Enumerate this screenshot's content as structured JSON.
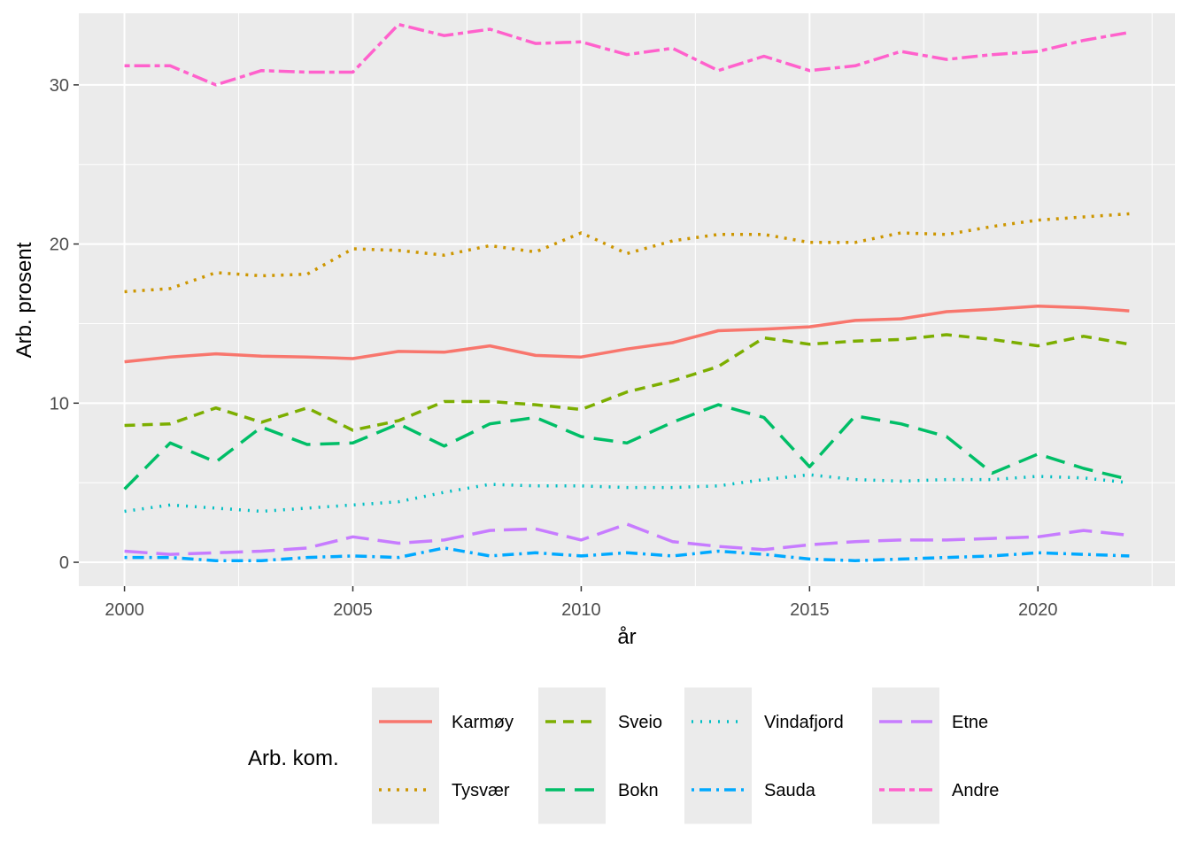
{
  "chart_data": {
    "type": "line",
    "xlabel": "år",
    "ylabel": "Arb. prosent",
    "xlim": [
      1999,
      2023
    ],
    "ylim": [
      -1.5,
      34.5
    ],
    "x_ticks": [
      2000,
      2005,
      2010,
      2015,
      2020
    ],
    "y_ticks": [
      0,
      10,
      20,
      30
    ],
    "grid": true,
    "legend": {
      "title": "Arb. kom.",
      "position": "bottom"
    },
    "x": [
      2000,
      2001,
      2002,
      2003,
      2004,
      2005,
      2006,
      2007,
      2008,
      2009,
      2010,
      2011,
      2012,
      2013,
      2014,
      2015,
      2016,
      2017,
      2018,
      2019,
      2020,
      2021,
      2022
    ],
    "series": [
      {
        "name": "Karmøy",
        "color": "#F8766D",
        "dash": "solid",
        "values": [
          12.6,
          12.9,
          13.1,
          12.95,
          12.9,
          12.8,
          13.25,
          13.2,
          13.6,
          13.0,
          12.9,
          13.4,
          13.8,
          14.55,
          14.65,
          14.8,
          15.2,
          15.3,
          15.75,
          15.9,
          16.1,
          16.0,
          15.8
        ]
      },
      {
        "name": "Tysvær",
        "color": "#CD9600",
        "dash": "dotted",
        "values": [
          17.0,
          17.2,
          18.2,
          18.0,
          18.1,
          19.7,
          19.6,
          19.3,
          19.9,
          19.5,
          20.7,
          19.4,
          20.2,
          20.6,
          20.6,
          20.1,
          20.1,
          20.7,
          20.6,
          21.1,
          21.5,
          21.7,
          21.9
        ]
      },
      {
        "name": "Sveio",
        "color": "#7CAE00",
        "dash": "dashed",
        "values": [
          8.6,
          8.7,
          9.7,
          8.8,
          9.7,
          8.3,
          8.9,
          10.1,
          10.1,
          9.9,
          9.6,
          10.7,
          11.4,
          12.3,
          14.1,
          13.7,
          13.9,
          14.0,
          14.3,
          14.0,
          13.6,
          14.2,
          13.7
        ]
      },
      {
        "name": "Bokn",
        "color": "#00BE67",
        "dash": "longdash",
        "values": [
          4.6,
          7.5,
          6.3,
          8.5,
          7.4,
          7.5,
          8.7,
          7.3,
          8.7,
          9.1,
          7.9,
          7.5,
          8.8,
          9.9,
          9.1,
          6.0,
          9.2,
          8.7,
          7.9,
          5.6,
          6.8,
          5.9,
          5.2
        ]
      },
      {
        "name": "Vindafjord",
        "color": "#00BFC4",
        "dash": "dotted2",
        "values": [
          3.2,
          3.6,
          3.4,
          3.2,
          3.4,
          3.6,
          3.8,
          4.4,
          4.9,
          4.8,
          4.8,
          4.7,
          4.7,
          4.8,
          5.2,
          5.5,
          5.2,
          5.1,
          5.2,
          5.2,
          5.4,
          5.3,
          5.0
        ]
      },
      {
        "name": "Sauda",
        "color": "#00A9FF",
        "dash": "dotdash",
        "values": [
          0.3,
          0.3,
          0.1,
          0.1,
          0.3,
          0.4,
          0.3,
          0.9,
          0.4,
          0.6,
          0.4,
          0.6,
          0.4,
          0.7,
          0.5,
          0.2,
          0.1,
          0.2,
          0.3,
          0.4,
          0.6,
          0.5,
          0.4
        ]
      },
      {
        "name": "Etne",
        "color": "#C77CFF",
        "dash": "longdash2",
        "values": [
          0.7,
          0.5,
          0.6,
          0.7,
          0.9,
          1.6,
          1.2,
          1.4,
          2.0,
          2.1,
          1.4,
          2.4,
          1.3,
          1.0,
          0.8,
          1.1,
          1.3,
          1.4,
          1.4,
          1.5,
          1.6,
          2.0,
          1.7
        ]
      },
      {
        "name": "Andre",
        "color": "#FF61CC",
        "dash": "twodash",
        "values": [
          31.2,
          31.2,
          30.0,
          30.9,
          30.8,
          30.8,
          33.8,
          33.1,
          33.5,
          32.6,
          32.7,
          31.9,
          32.3,
          30.9,
          31.8,
          30.9,
          31.2,
          32.1,
          31.6,
          31.9,
          32.1,
          32.8,
          33.3
        ]
      }
    ]
  }
}
